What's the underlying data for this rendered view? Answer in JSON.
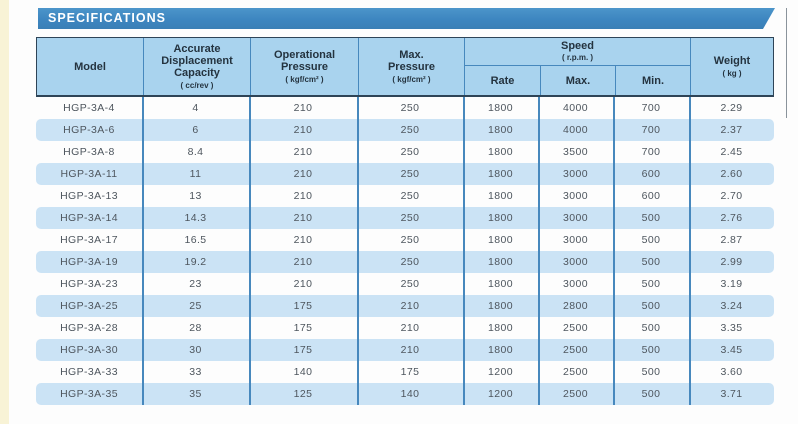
{
  "page": {
    "banner_title": "SPECIFICATIONS"
  },
  "colors": {
    "banner_blue": "#3d86c0",
    "header_background": "#a9d3ee",
    "row_stripe": "#cbe3f5",
    "grid_line": "#4788bd",
    "header_border": "#2e4457",
    "header_text": "#24333f",
    "data_text": "#4e565e",
    "edge_strip": "#f8f3d6"
  },
  "table": {
    "header": {
      "model": {
        "label": "Model"
      },
      "capacity": {
        "line1": "Accurate",
        "line2": "Displacement",
        "line3": "Capacity",
        "unit": "( cc/rev )"
      },
      "op_pressure": {
        "line1": "Operational",
        "line2": "Pressure",
        "unit": "( kgf/cm² )"
      },
      "max_pressure": {
        "line1": "Max.",
        "line2": "Pressure",
        "unit": "( kgf/cm² )"
      },
      "speed": {
        "label": "Speed",
        "unit": "( r.p.m. )",
        "subs": [
          "Rate",
          "Max.",
          "Min."
        ]
      },
      "weight": {
        "line1": "Weight",
        "unit": "( kg )"
      }
    },
    "row_fields": [
      "model",
      "capacity",
      "op_pressure",
      "max_pressure",
      "rate",
      "max",
      "min",
      "weight"
    ],
    "rows": [
      {
        "model": "HGP-3A-4",
        "capacity": "4",
        "op_pressure": "210",
        "max_pressure": "250",
        "rate": "1800",
        "max": "4000",
        "min": "700",
        "weight": "2.29"
      },
      {
        "model": "HGP-3A-6",
        "capacity": "6",
        "op_pressure": "210",
        "max_pressure": "250",
        "rate": "1800",
        "max": "4000",
        "min": "700",
        "weight": "2.37"
      },
      {
        "model": "HGP-3A-8",
        "capacity": "8.4",
        "op_pressure": "210",
        "max_pressure": "250",
        "rate": "1800",
        "max": "3500",
        "min": "700",
        "weight": "2.45"
      },
      {
        "model": "HGP-3A-11",
        "capacity": "11",
        "op_pressure": "210",
        "max_pressure": "250",
        "rate": "1800",
        "max": "3000",
        "min": "600",
        "weight": "2.60"
      },
      {
        "model": "HGP-3A-13",
        "capacity": "13",
        "op_pressure": "210",
        "max_pressure": "250",
        "rate": "1800",
        "max": "3000",
        "min": "600",
        "weight": "2.70"
      },
      {
        "model": "HGP-3A-14",
        "capacity": "14.3",
        "op_pressure": "210",
        "max_pressure": "250",
        "rate": "1800",
        "max": "3000",
        "min": "500",
        "weight": "2.76"
      },
      {
        "model": "HGP-3A-17",
        "capacity": "16.5",
        "op_pressure": "210",
        "max_pressure": "250",
        "rate": "1800",
        "max": "3000",
        "min": "500",
        "weight": "2.87"
      },
      {
        "model": "HGP-3A-19",
        "capacity": "19.2",
        "op_pressure": "210",
        "max_pressure": "250",
        "rate": "1800",
        "max": "3000",
        "min": "500",
        "weight": "2.99"
      },
      {
        "model": "HGP-3A-23",
        "capacity": "23",
        "op_pressure": "210",
        "max_pressure": "250",
        "rate": "1800",
        "max": "3000",
        "min": "500",
        "weight": "3.19"
      },
      {
        "model": "HGP-3A-25",
        "capacity": "25",
        "op_pressure": "175",
        "max_pressure": "210",
        "rate": "1800",
        "max": "2800",
        "min": "500",
        "weight": "3.24"
      },
      {
        "model": "HGP-3A-28",
        "capacity": "28",
        "op_pressure": "175",
        "max_pressure": "210",
        "rate": "1800",
        "max": "2500",
        "min": "500",
        "weight": "3.35"
      },
      {
        "model": "HGP-3A-30",
        "capacity": "30",
        "op_pressure": "175",
        "max_pressure": "210",
        "rate": "1800",
        "max": "2500",
        "min": "500",
        "weight": "3.45"
      },
      {
        "model": "HGP-3A-33",
        "capacity": "33",
        "op_pressure": "140",
        "max_pressure": "175",
        "rate": "1200",
        "max": "2500",
        "min": "500",
        "weight": "3.60"
      },
      {
        "model": "HGP-3A-35",
        "capacity": "35",
        "op_pressure": "125",
        "max_pressure": "140",
        "rate": "1200",
        "max": "2500",
        "min": "500",
        "weight": "3.71"
      }
    ]
  }
}
